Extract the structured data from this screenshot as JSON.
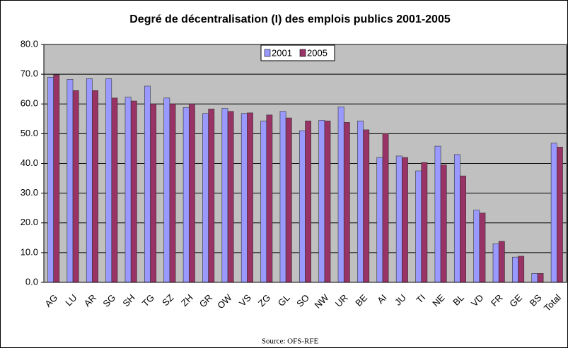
{
  "chart_data": {
    "type": "bar",
    "title": "Degré de décentralisation (I) des emplois publics 2001-2005",
    "source": "Source: OFS-RFE",
    "categories": [
      "AG",
      "LU",
      "AR",
      "SG",
      "SH",
      "TG",
      "SZ",
      "ZH",
      "GR",
      "OW",
      "VS",
      "ZG",
      "GL",
      "SO",
      "NW",
      "UR",
      "BE",
      "AI",
      "JU",
      "TI",
      "NE",
      "BL",
      "VD",
      "FR",
      "GE",
      "BS",
      "Total"
    ],
    "series": [
      {
        "name": "2001",
        "color": "#9999ff",
        "values": [
          69,
          68.3,
          68.5,
          68.5,
          62.3,
          66,
          62,
          58.8,
          56.8,
          58.5,
          56.8,
          54.3,
          57.5,
          51,
          54.5,
          59,
          54.3,
          42,
          42.5,
          37.5,
          45.8,
          43,
          24.3,
          13,
          8.5,
          3,
          46.8
        ]
      },
      {
        "name": "2005",
        "color": "#993366",
        "values": [
          69.8,
          64.5,
          64.5,
          62,
          61,
          60,
          60,
          60,
          58.3,
          57.5,
          57,
          56.3,
          55.3,
          54.3,
          54.3,
          53.8,
          51.3,
          50,
          42,
          40.3,
          39.5,
          35.8,
          23.3,
          13.8,
          8.8,
          3,
          45.5
        ]
      }
    ],
    "ylim": [
      0,
      80
    ],
    "yticks": [
      {
        "value": 0,
        "label": "0.0"
      },
      {
        "value": 10,
        "label": "10.0"
      },
      {
        "value": 20,
        "label": "20.0"
      },
      {
        "value": 30,
        "label": "30.0"
      },
      {
        "value": 40,
        "label": "40.0"
      },
      {
        "value": 50,
        "label": "50.0"
      },
      {
        "value": 60,
        "label": "60.0"
      },
      {
        "value": 70,
        "label": "70.0"
      },
      {
        "value": 80,
        "label": "80.0"
      }
    ],
    "grid": true,
    "legend": "top",
    "plot_background": "#c0c0c0"
  }
}
